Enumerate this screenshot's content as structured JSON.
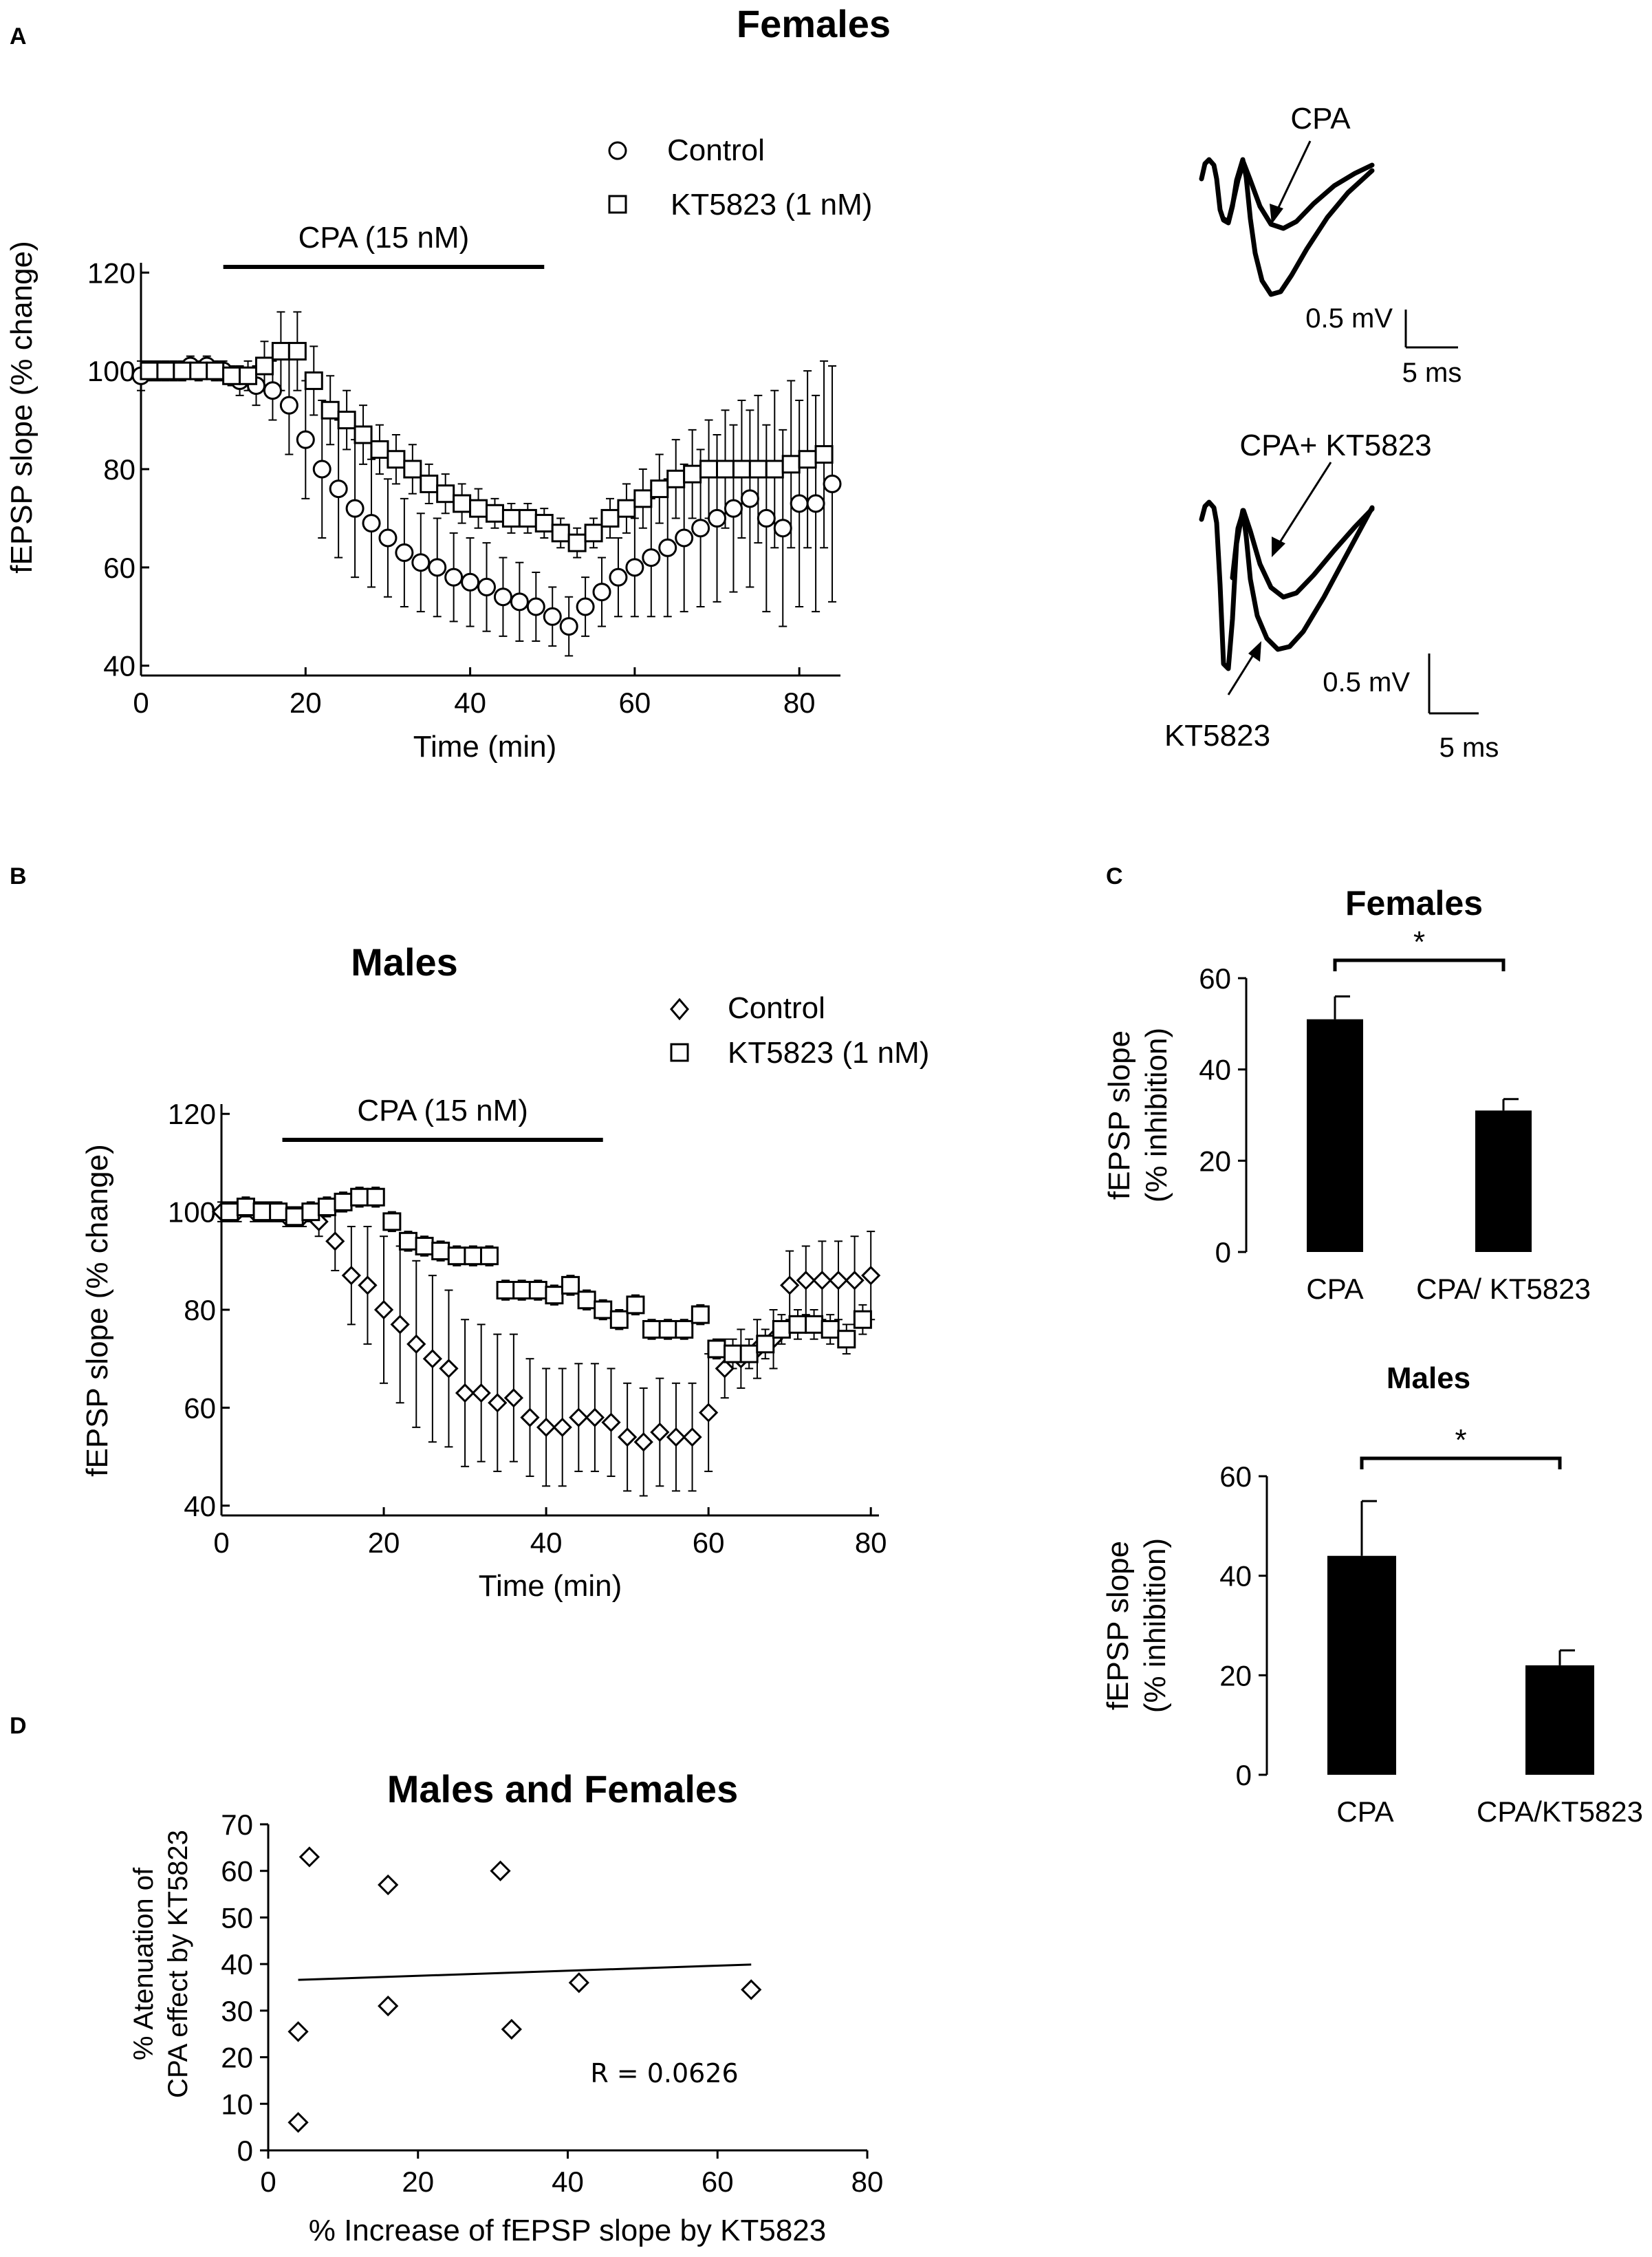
{
  "chart_data": [
    {
      "panel": "A",
      "type": "scatter",
      "title": "Females",
      "xlabel": "Time (min)",
      "ylabel": "fEPSP slope (% change)",
      "xlim": [
        0,
        85
      ],
      "ylim": [
        38,
        122
      ],
      "xticks": [
        0,
        20,
        40,
        60,
        80
      ],
      "yticks": [
        40,
        60,
        80,
        100,
        120
      ],
      "treatment": {
        "label": "CPA (15 nM)",
        "start": 10,
        "end": 49
      },
      "legend": [
        "Control",
        "KT5823 (1 nM)"
      ],
      "series": [
        {
          "name": "Control",
          "marker": "circle",
          "x": [
            0,
            2,
            4,
            6,
            8,
            10,
            12,
            14,
            16,
            18,
            20,
            22,
            24,
            26,
            28,
            30,
            32,
            34,
            36,
            38,
            40,
            42,
            44,
            46,
            48,
            50,
            52,
            54,
            56,
            58,
            60,
            62,
            64,
            66,
            68,
            70,
            72,
            74,
            76,
            78,
            80,
            82,
            84
          ],
          "y": [
            99,
            100,
            100,
            101,
            101,
            100,
            98,
            97,
            96,
            93,
            86,
            80,
            76,
            72,
            69,
            66,
            63,
            61,
            60,
            58,
            57,
            56,
            54,
            53,
            52,
            50,
            48,
            52,
            55,
            58,
            60,
            62,
            64,
            66,
            68,
            70,
            72,
            74,
            70,
            68,
            73,
            73,
            77
          ],
          "err": [
            3,
            2,
            2,
            2,
            2,
            2,
            3,
            4,
            6,
            10,
            12,
            14,
            14,
            14,
            13,
            12,
            11,
            10,
            10,
            9,
            9,
            9,
            8,
            8,
            7,
            6,
            6,
            6,
            7,
            8,
            10,
            12,
            14,
            15,
            16,
            17,
            17,
            18,
            19,
            20,
            21,
            22,
            24
          ]
        },
        {
          "name": "KT5823 (1 nM)",
          "marker": "square",
          "x": [
            1,
            3,
            5,
            7,
            9,
            11,
            13,
            15,
            17,
            19,
            21,
            23,
            25,
            27,
            29,
            31,
            33,
            35,
            37,
            39,
            41,
            43,
            45,
            47,
            49,
            51,
            53,
            55,
            57,
            59,
            61,
            63,
            65,
            67,
            69,
            71,
            73,
            75,
            77,
            79,
            81,
            83
          ],
          "y": [
            100,
            100,
            100,
            100,
            100,
            99,
            99,
            101,
            104,
            104,
            98,
            92,
            90,
            87,
            84,
            82,
            80,
            77,
            75,
            73,
            72,
            71,
            70,
            70,
            69,
            67,
            65,
            67,
            70,
            72,
            74,
            76,
            78,
            79,
            80,
            80,
            80,
            80,
            80,
            81,
            82,
            83
          ],
          "err": [
            2,
            2,
            2,
            2,
            2,
            2,
            3,
            5,
            8,
            8,
            7,
            7,
            6,
            6,
            5,
            5,
            5,
            4,
            4,
            4,
            4,
            3,
            3,
            3,
            3,
            3,
            3,
            3,
            4,
            5,
            6,
            7,
            8,
            9,
            10,
            12,
            14,
            15,
            16,
            17,
            18,
            19
          ]
        }
      ]
    },
    {
      "panel": "A-traces",
      "type": "line",
      "annotations": [
        "CPA",
        "CPA+ KT5823",
        "KT5823"
      ],
      "scale_bars": [
        {
          "voltage": "0.5 mV",
          "time": "5 ms"
        },
        {
          "voltage": "0.5 mV",
          "time": "5 ms"
        }
      ]
    },
    {
      "panel": "B",
      "type": "scatter",
      "title": "Males",
      "xlabel": "Time (min)",
      "ylabel": "fEPSP slope (% change)",
      "xlim": [
        0,
        81
      ],
      "ylim": [
        38,
        122
      ],
      "xticks": [
        0,
        20,
        40,
        60,
        80
      ],
      "yticks": [
        40,
        60,
        80,
        100,
        120
      ],
      "treatment": {
        "label": "CPA (15 nM)",
        "start": 7.5,
        "end": 47
      },
      "legend": [
        "Control",
        "KT5823 (1 nM)"
      ],
      "series": [
        {
          "name": "Control",
          "marker": "diamond",
          "x": [
            0,
            2,
            4,
            6,
            8,
            10,
            12,
            14,
            16,
            18,
            20,
            22,
            24,
            26,
            28,
            30,
            32,
            34,
            36,
            38,
            40,
            42,
            44,
            46,
            48,
            50,
            52,
            54,
            56,
            58,
            60,
            62,
            64,
            66,
            68,
            70,
            72,
            74,
            76,
            78,
            80
          ],
          "y": [
            100,
            100,
            100,
            100,
            99,
            99,
            98,
            94,
            87,
            85,
            80,
            77,
            73,
            70,
            68,
            63,
            63,
            61,
            62,
            58,
            56,
            56,
            58,
            58,
            57,
            54,
            53,
            55,
            54,
            54,
            59,
            68,
            70,
            72,
            74,
            85,
            86,
            86,
            86,
            86,
            87
          ],
          "err": [
            2,
            2,
            2,
            2,
            2,
            2,
            3,
            6,
            10,
            12,
            15,
            16,
            17,
            17,
            16,
            15,
            14,
            14,
            13,
            12,
            12,
            12,
            11,
            11,
            11,
            11,
            11,
            11,
            11,
            11,
            12,
            6,
            6,
            6,
            6,
            7,
            7,
            8,
            8,
            9,
            9
          ]
        },
        {
          "name": "KT5823 (1 nM)",
          "marker": "square",
          "x": [
            1,
            3,
            5,
            7,
            9,
            11,
            13,
            15,
            17,
            19,
            21,
            23,
            25,
            27,
            29,
            31,
            33,
            35,
            37,
            39,
            41,
            43,
            45,
            47,
            49,
            51,
            53,
            55,
            57,
            59,
            61,
            63,
            65,
            67,
            69,
            71,
            73,
            75,
            77,
            79
          ],
          "y": [
            100,
            101,
            100,
            100,
            99,
            100,
            101,
            102,
            103,
            103,
            98,
            94,
            93,
            92,
            91,
            91,
            91,
            84,
            84,
            84,
            83,
            85,
            82,
            80,
            78,
            81,
            76,
            76,
            76,
            79,
            72,
            71,
            71,
            73,
            76,
            77,
            77,
            76,
            74,
            78
          ],
          "err": [
            2,
            2,
            2,
            2,
            2,
            2,
            2,
            2,
            2,
            2,
            2,
            2,
            2,
            2,
            2,
            2,
            2,
            2,
            2,
            2,
            2,
            2,
            2,
            2,
            2,
            2,
            2,
            2,
            2,
            2,
            2,
            3,
            3,
            3,
            3,
            3,
            3,
            3,
            3,
            3
          ]
        }
      ]
    },
    {
      "panel": "C-females",
      "type": "bar",
      "title": "Females",
      "ylabel": "fEPSP slope (% inhibition)",
      "categories": [
        "CPA",
        "CPA/ KT5823"
      ],
      "values": [
        51,
        31
      ],
      "err": [
        5,
        2.5
      ],
      "ylim": [
        0,
        60
      ],
      "yticks": [
        0,
        20,
        40,
        60
      ],
      "significance": "*"
    },
    {
      "panel": "C-males",
      "type": "bar",
      "title": "Males",
      "ylabel": "fEPSP slope (% inhibition)",
      "categories": [
        "CPA",
        "CPA/KT5823"
      ],
      "values": [
        44,
        22
      ],
      "err": [
        11,
        3
      ],
      "ylim": [
        0,
        60
      ],
      "yticks": [
        0,
        20,
        40,
        60
      ],
      "significance": "*"
    },
    {
      "panel": "D",
      "type": "scatter",
      "title": "Males and Females",
      "xlabel": "% Increase of fEPSP slope by KT5823",
      "ylabel": "% Atenuation of CPA effect by KT5823",
      "xlim": [
        0,
        80
      ],
      "ylim": [
        0,
        70
      ],
      "xticks": [
        0,
        20,
        40,
        60,
        80
      ],
      "yticks": [
        0,
        10,
        20,
        30,
        40,
        50,
        60,
        70
      ],
      "x": [
        4,
        4,
        5.5,
        16,
        16,
        31,
        32.5,
        41.5,
        64.5
      ],
      "y": [
        6,
        25.5,
        63,
        57,
        31,
        60,
        26,
        36,
        34.5
      ],
      "fit": {
        "x": [
          4,
          64.5
        ],
        "y": [
          36.6,
          39.9
        ]
      },
      "annotation": "R = 0.0626"
    }
  ],
  "labels": {
    "panel_a": "A",
    "panel_b": "B",
    "panel_c": "C",
    "panel_d": "D"
  },
  "colors": {
    "ink": "#000000",
    "background": "#ffffff"
  }
}
